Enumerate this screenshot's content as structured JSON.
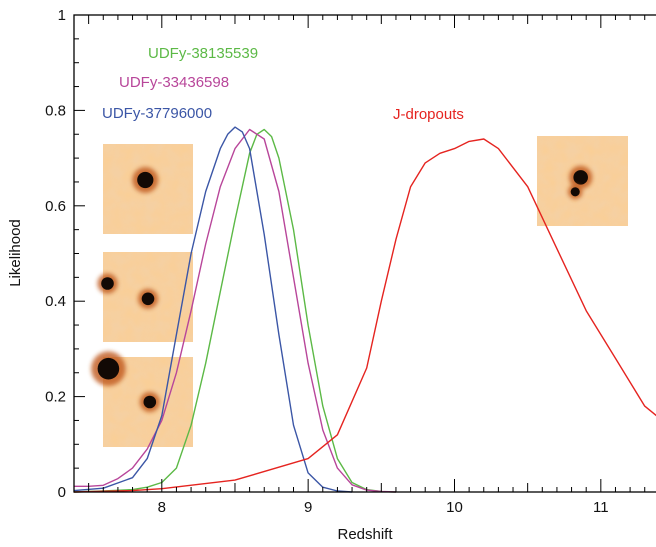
{
  "chart_data": {
    "type": "line",
    "title": "",
    "xlabel": "Redshift",
    "ylabel": "Likelihood",
    "xlim": [
      7.4,
      11.5
    ],
    "ylim": [
      0,
      1
    ],
    "xticks": [
      8,
      9,
      10,
      11
    ],
    "xtick_labels": [
      "8",
      "9",
      "10",
      "11"
    ],
    "yticks": [
      0,
      0.2,
      0.4,
      0.6,
      0.8,
      1
    ],
    "ytick_labels": [
      "0",
      "0.2",
      "0.4",
      "0.6",
      "0.8",
      "1"
    ],
    "grid": false,
    "series": [
      {
        "name": "UDFy-38135539",
        "color": "#5cb946",
        "x": [
          7.4,
          7.6,
          7.8,
          7.9,
          8.0,
          8.1,
          8.2,
          8.3,
          8.4,
          8.5,
          8.6,
          8.65,
          8.7,
          8.75,
          8.8,
          8.9,
          9.0,
          9.1,
          9.2,
          9.3,
          9.4,
          9.5,
          9.6
        ],
        "y": [
          0.0,
          0.002,
          0.005,
          0.01,
          0.02,
          0.05,
          0.14,
          0.27,
          0.42,
          0.57,
          0.71,
          0.75,
          0.76,
          0.745,
          0.7,
          0.55,
          0.35,
          0.18,
          0.07,
          0.02,
          0.005,
          0.001,
          0.0
        ]
      },
      {
        "name": "UDFy-33436598",
        "color": "#b8469a",
        "x": [
          7.4,
          7.5,
          7.6,
          7.7,
          7.8,
          7.9,
          8.0,
          8.1,
          8.2,
          8.3,
          8.4,
          8.5,
          8.6,
          8.7,
          8.8,
          8.9,
          9.0,
          9.1,
          9.2,
          9.3,
          9.4,
          9.5,
          9.6
        ],
        "y": [
          0.012,
          0.012,
          0.014,
          0.028,
          0.05,
          0.09,
          0.15,
          0.25,
          0.38,
          0.52,
          0.64,
          0.72,
          0.76,
          0.74,
          0.63,
          0.45,
          0.27,
          0.13,
          0.05,
          0.015,
          0.004,
          0.001,
          0.0
        ]
      },
      {
        "name": "UDFy-37796000",
        "color": "#3b56a6",
        "x": [
          7.4,
          7.6,
          7.8,
          7.9,
          8.0,
          8.1,
          8.2,
          8.3,
          8.4,
          8.45,
          8.5,
          8.55,
          8.6,
          8.7,
          8.8,
          8.9,
          9.0,
          9.1,
          9.2,
          9.3
        ],
        "y": [
          0.003,
          0.008,
          0.03,
          0.07,
          0.16,
          0.33,
          0.5,
          0.63,
          0.72,
          0.75,
          0.765,
          0.755,
          0.72,
          0.54,
          0.33,
          0.14,
          0.04,
          0.01,
          0.002,
          0.0
        ]
      },
      {
        "name": "J-dropouts",
        "color": "#e52420",
        "x": [
          7.4,
          7.8,
          8.0,
          8.5,
          9.0,
          9.2,
          9.4,
          9.5,
          9.6,
          9.7,
          9.8,
          9.9,
          10.0,
          10.1,
          10.2,
          10.3,
          10.5,
          10.7,
          10.9,
          11.1,
          11.3,
          11.5
        ],
        "y": [
          0.0,
          0.003,
          0.007,
          0.025,
          0.07,
          0.12,
          0.26,
          0.4,
          0.53,
          0.64,
          0.69,
          0.71,
          0.72,
          0.735,
          0.74,
          0.72,
          0.64,
          0.51,
          0.38,
          0.28,
          0.18,
          0.13
        ]
      }
    ],
    "thumbnails": [
      {
        "name": "UDFy-38135539-image",
        "blobs": [
          {
            "cx": 0.47,
            "cy": 0.4,
            "r": 0.09
          }
        ]
      },
      {
        "name": "UDFy-33436598-image",
        "blobs": [
          {
            "cx": 0.05,
            "cy": 0.35,
            "r": 0.07
          },
          {
            "cx": 0.5,
            "cy": 0.52,
            "r": 0.07
          }
        ]
      },
      {
        "name": "UDFy-37796000-image",
        "blobs": [
          {
            "cx": 0.06,
            "cy": 0.13,
            "r": 0.12
          },
          {
            "cx": 0.52,
            "cy": 0.5,
            "r": 0.07
          }
        ]
      },
      {
        "name": "J-dropouts-image",
        "blobs": [
          {
            "cx": 0.48,
            "cy": 0.46,
            "r": 0.08
          },
          {
            "cx": 0.42,
            "cy": 0.62,
            "r": 0.05
          }
        ]
      }
    ]
  }
}
